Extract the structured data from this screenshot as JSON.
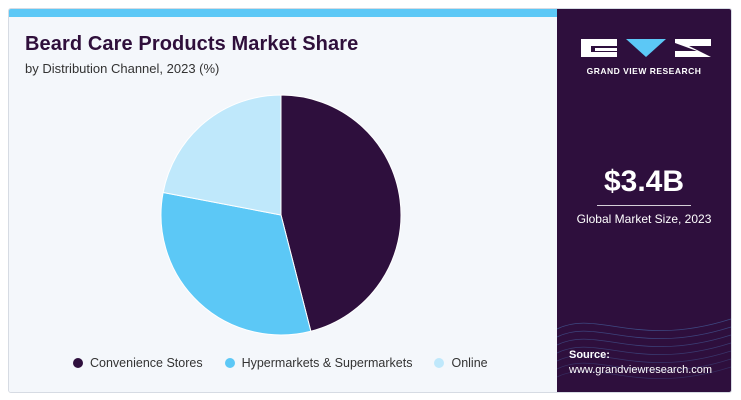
{
  "header": {
    "title": "Beard Care Products Market Share",
    "subtitle": "by Distribution Channel, 2023 (%)"
  },
  "chart_data": {
    "type": "pie",
    "categories": [
      "Convenience Stores",
      "Hypermarkets & Supermarkets",
      "Online"
    ],
    "values": [
      46,
      32,
      22
    ],
    "colors": [
      "#2e0f3d",
      "#5cc8f6",
      "#bfe8fb"
    ],
    "start_angle_deg": 0,
    "direction": "clockwise",
    "legend_position": "bottom"
  },
  "sidebar": {
    "logo_text": "GRAND VIEW RESEARCH",
    "stat_value": "$3.4B",
    "stat_label": "Global Market Size, 2023",
    "source_label": "Source:",
    "source_url": "www.grandviewresearch.com"
  },
  "colors": {
    "title": "#2f0f3b",
    "panel": "#2e0f3d",
    "accent": "#5cc8f6",
    "background": "#f4f7fb"
  }
}
